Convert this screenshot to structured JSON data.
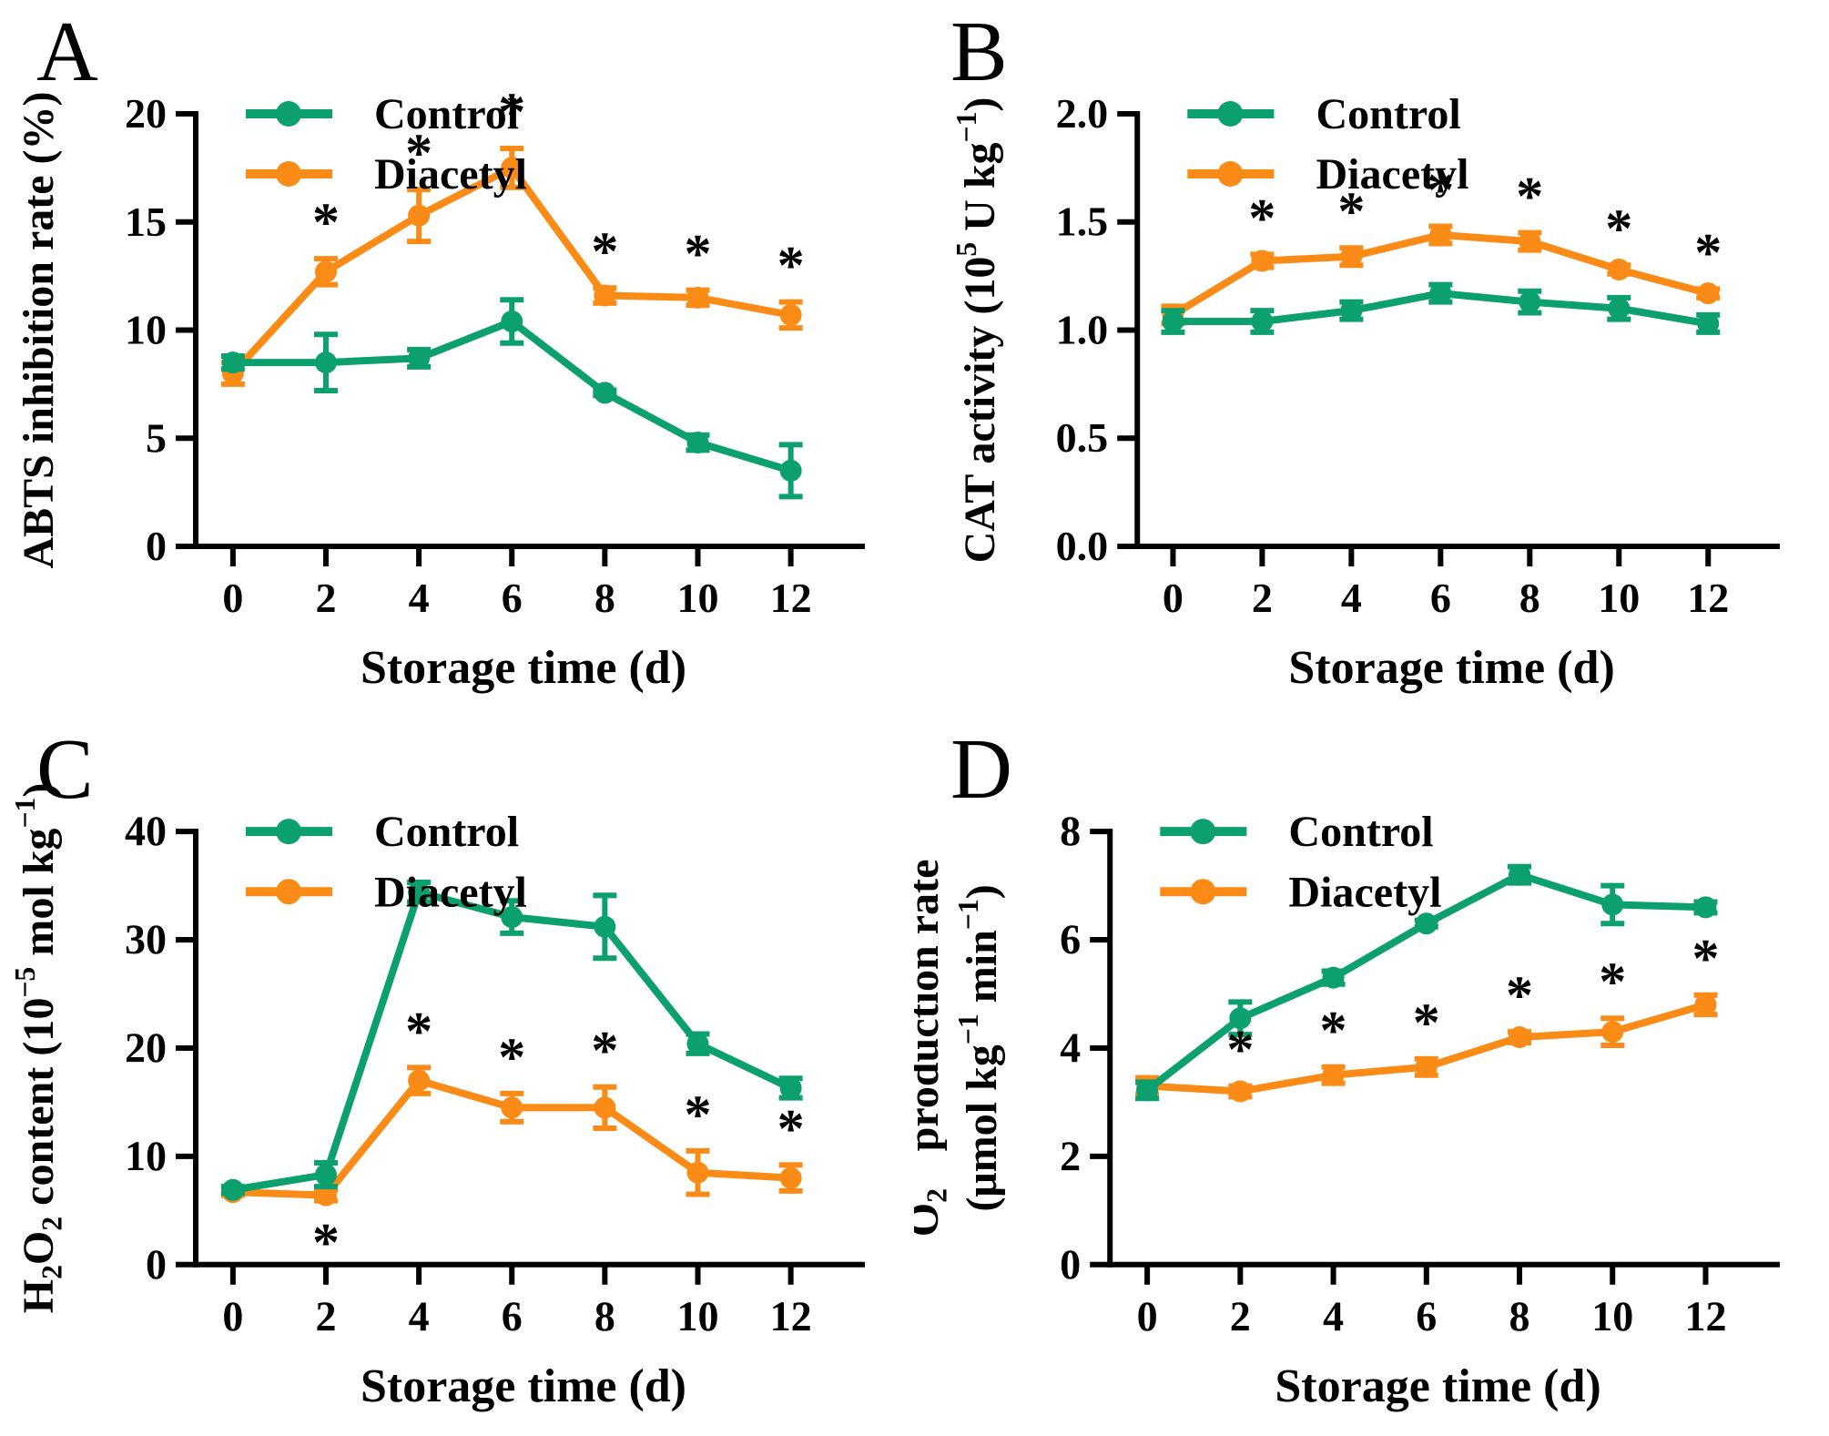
{
  "figure": {
    "background": "#ffffff",
    "axis_color": "#000000",
    "significance_symbol": "*",
    "panels_order": [
      "A",
      "B",
      "C",
      "D"
    ]
  },
  "chart_data": [
    {
      "panel": "A",
      "type": "line",
      "xlabel": "Storage time (d)",
      "ylabel_lines": [
        "ABTS inhibition rate (%)"
      ],
      "x": [
        0,
        2,
        4,
        6,
        8,
        10,
        12
      ],
      "xtick_labels": [
        "0",
        "2",
        "4",
        "6",
        "8",
        "10",
        "12"
      ],
      "xlim": [
        -0.8,
        13.3
      ],
      "ylim": [
        0,
        20
      ],
      "yticks": [
        0,
        5,
        10,
        15,
        20
      ],
      "ytick_labels": [
        "0",
        "5",
        "10",
        "15",
        "20"
      ],
      "legend_position": "top-left",
      "grid": false,
      "series": [
        {
          "name": "Control",
          "color": "#0ba06e",
          "marker": "circle",
          "values": [
            8.5,
            8.5,
            8.7,
            10.4,
            7.1,
            4.8,
            3.5
          ],
          "errors": [
            0.3,
            1.3,
            0.4,
            1.0,
            0.12,
            0.35,
            1.2
          ]
        },
        {
          "name": "Diacetyl",
          "color": "#fb8b17",
          "marker": "circle",
          "values": [
            8.0,
            12.7,
            15.3,
            17.5,
            11.6,
            11.5,
            10.7
          ],
          "errors": [
            0.5,
            0.6,
            1.2,
            0.9,
            0.35,
            0.35,
            0.6
          ]
        }
      ],
      "significance": {
        "symbol": "*",
        "series": "Diacetyl",
        "points": [
          {
            "day": 2,
            "placement": "above"
          },
          {
            "day": 4,
            "placement": "above"
          },
          {
            "day": 6,
            "placement": "above"
          },
          {
            "day": 8,
            "placement": "above"
          },
          {
            "day": 10,
            "placement": "above"
          },
          {
            "day": 12,
            "placement": "above"
          }
        ]
      }
    },
    {
      "panel": "B",
      "type": "line",
      "xlabel": "Storage time (d)",
      "ylabel_lines": [
        "CAT activity (10^{5} U kg^{−1})"
      ],
      "x": [
        0,
        2,
        4,
        6,
        8,
        10,
        12
      ],
      "xtick_labels": [
        "0",
        "2",
        "4",
        "6",
        "8",
        "10",
        "12"
      ],
      "xlim": [
        -0.8,
        13.3
      ],
      "ylim": [
        0,
        2.0
      ],
      "yticks": [
        0,
        0.5,
        1.0,
        1.5,
        2.0
      ],
      "ytick_labels": [
        "0.0",
        "0.5",
        "1.0",
        "1.5",
        "2.0"
      ],
      "legend_position": "top-left",
      "grid": false,
      "series": [
        {
          "name": "Control",
          "color": "#0ba06e",
          "marker": "circle",
          "values": [
            1.04,
            1.04,
            1.09,
            1.17,
            1.13,
            1.1,
            1.03
          ],
          "errors": [
            0.05,
            0.05,
            0.04,
            0.04,
            0.05,
            0.05,
            0.04
          ]
        },
        {
          "name": "Diacetyl",
          "color": "#fb8b17",
          "marker": "circle",
          "values": [
            1.07,
            1.32,
            1.34,
            1.44,
            1.41,
            1.28,
            1.17
          ],
          "errors": [
            0.04,
            0.03,
            0.04,
            0.04,
            0.04,
            0.02,
            0.02
          ]
        }
      ],
      "significance": {
        "symbol": "*",
        "series": "Diacetyl",
        "points": [
          {
            "day": 2,
            "placement": "above"
          },
          {
            "day": 4,
            "placement": "above"
          },
          {
            "day": 6,
            "placement": "above"
          },
          {
            "day": 8,
            "placement": "above"
          },
          {
            "day": 10,
            "placement": "above"
          },
          {
            "day": 12,
            "placement": "above"
          }
        ]
      }
    },
    {
      "panel": "C",
      "type": "line",
      "xlabel": "Storage time (d)",
      "ylabel_lines": [
        "H_{2}O_{2} content (10^{−5} mol kg^{−1})"
      ],
      "x": [
        0,
        2,
        4,
        6,
        8,
        10,
        12
      ],
      "xtick_labels": [
        "0",
        "2",
        "4",
        "6",
        "8",
        "10",
        "12"
      ],
      "xlim": [
        -0.8,
        13.3
      ],
      "ylim": [
        0,
        40
      ],
      "yticks": [
        0,
        10,
        20,
        30,
        40
      ],
      "ytick_labels": [
        "0",
        "10",
        "20",
        "30",
        "40"
      ],
      "legend_position": "top-left",
      "grid": false,
      "series": [
        {
          "name": "Control",
          "color": "#0ba06e",
          "marker": "circle",
          "values": [
            6.9,
            8.3,
            34.4,
            32.1,
            31.2,
            20.4,
            16.3
          ],
          "errors": [
            0.3,
            1.1,
            0.9,
            1.5,
            2.9,
            0.9,
            0.9
          ]
        },
        {
          "name": "Diacetyl",
          "color": "#fb8b17",
          "marker": "circle",
          "values": [
            6.7,
            6.4,
            17.0,
            14.5,
            14.5,
            8.5,
            8.0
          ],
          "errors": [
            0.3,
            0.5,
            1.2,
            1.3,
            1.9,
            2.0,
            1.2
          ]
        }
      ],
      "significance": {
        "symbol": "*",
        "series": "Diacetyl",
        "points": [
          {
            "day": 2,
            "placement": "below"
          },
          {
            "day": 4,
            "placement": "above"
          },
          {
            "day": 6,
            "placement": "above"
          },
          {
            "day": 8,
            "placement": "above"
          },
          {
            "day": 10,
            "placement": "above"
          },
          {
            "day": 12,
            "placement": "above"
          }
        ]
      }
    },
    {
      "panel": "D",
      "type": "line",
      "xlabel": "Storage time (d)",
      "ylabel_lines": [
        "O_{2}^{·−} production rate",
        "(μmol kg^{−1} min^{−1})"
      ],
      "x": [
        0,
        2,
        4,
        6,
        8,
        10,
        12
      ],
      "xtick_labels": [
        "0",
        "2",
        "4",
        "6",
        "8",
        "10",
        "12"
      ],
      "xlim": [
        -0.8,
        13.3
      ],
      "ylim": [
        0,
        8
      ],
      "yticks": [
        0,
        2,
        4,
        6,
        8
      ],
      "ytick_labels": [
        "0",
        "2",
        "4",
        "6",
        "8"
      ],
      "legend_position": "top-left",
      "grid": false,
      "series": [
        {
          "name": "Control",
          "color": "#0ba06e",
          "marker": "circle",
          "values": [
            3.22,
            4.55,
            5.3,
            6.3,
            7.2,
            6.65,
            6.6
          ],
          "errors": [
            0.15,
            0.3,
            0.12,
            0.06,
            0.15,
            0.35,
            0.1
          ]
        },
        {
          "name": "Diacetyl",
          "color": "#fb8b17",
          "marker": "circle",
          "values": [
            3.3,
            3.2,
            3.5,
            3.65,
            4.2,
            4.3,
            4.8
          ],
          "errors": [
            0.15,
            0.1,
            0.15,
            0.15,
            0.1,
            0.25,
            0.18
          ]
        }
      ],
      "significance": {
        "symbol": "*",
        "series": "Diacetyl",
        "points": [
          {
            "day": 2,
            "placement": "above"
          },
          {
            "day": 4,
            "placement": "above"
          },
          {
            "day": 6,
            "placement": "above"
          },
          {
            "day": 8,
            "placement": "above"
          },
          {
            "day": 10,
            "placement": "above"
          },
          {
            "day": 12,
            "placement": "above"
          }
        ]
      }
    }
  ]
}
